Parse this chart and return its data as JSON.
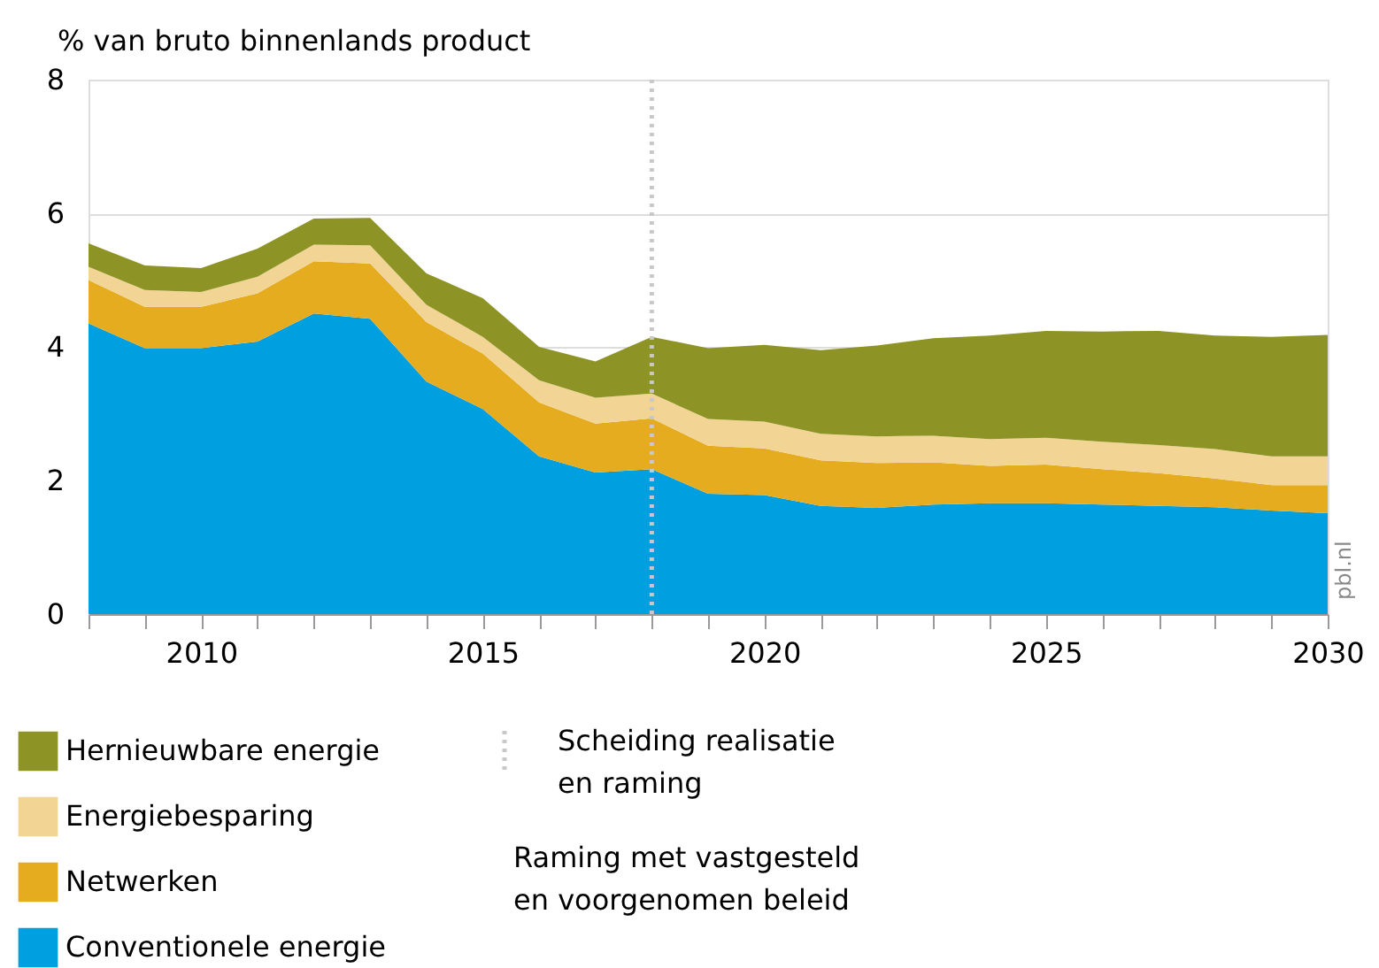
{
  "chart_data": {
    "type": "area",
    "stacked": true,
    "ylabel": "% van bruto binnenlands product",
    "x": [
      2008,
      2009,
      2010,
      2011,
      2012,
      2013,
      2014,
      2015,
      2016,
      2017,
      2018,
      2019,
      2020,
      2021,
      2022,
      2023,
      2024,
      2025,
      2026,
      2027,
      2028,
      2029,
      2030
    ],
    "series": [
      {
        "name": "Conventionele energie",
        "color": "#009fdf",
        "values": [
          4.35,
          3.98,
          3.98,
          4.08,
          4.5,
          4.42,
          3.48,
          3.07,
          2.36,
          2.12,
          2.17,
          1.8,
          1.78,
          1.62,
          1.59,
          1.64,
          1.66,
          1.66,
          1.64,
          1.62,
          1.6,
          1.55,
          1.51
        ]
      },
      {
        "name": "Netwerken",
        "color": "#e6ac1f",
        "values": [
          0.65,
          0.62,
          0.62,
          0.72,
          0.78,
          0.83,
          0.89,
          0.83,
          0.81,
          0.73,
          0.76,
          0.72,
          0.7,
          0.68,
          0.67,
          0.63,
          0.56,
          0.58,
          0.53,
          0.49,
          0.43,
          0.38,
          0.42
        ]
      },
      {
        "name": "Energiebesparing",
        "color": "#f2d595",
        "values": [
          0.2,
          0.25,
          0.22,
          0.25,
          0.25,
          0.27,
          0.26,
          0.25,
          0.33,
          0.39,
          0.37,
          0.4,
          0.4,
          0.4,
          0.4,
          0.4,
          0.4,
          0.4,
          0.41,
          0.42,
          0.44,
          0.43,
          0.43
        ]
      },
      {
        "name": "Hernieuwbare energie",
        "color": "#8d9324",
        "values": [
          0.35,
          0.37,
          0.36,
          0.42,
          0.39,
          0.41,
          0.47,
          0.58,
          0.5,
          0.54,
          0.85,
          1.06,
          1.15,
          1.25,
          1.36,
          1.46,
          1.55,
          1.6,
          1.65,
          1.71,
          1.7,
          1.79,
          1.82
        ]
      }
    ],
    "xlim": [
      2008,
      2030
    ],
    "xticks": [
      {
        "value": 2008,
        "label": null
      },
      {
        "value": 2009,
        "label": null
      },
      2010,
      {
        "value": 2011,
        "label": null
      },
      {
        "value": 2012,
        "label": null
      },
      {
        "value": 2013,
        "label": null
      },
      {
        "value": 2014,
        "label": null
      },
      2015,
      {
        "value": 2016,
        "label": null
      },
      {
        "value": 2017,
        "label": null
      },
      {
        "value": 2018,
        "label": null
      },
      {
        "value": 2019,
        "label": null
      },
      2020,
      {
        "value": 2021,
        "label": null
      },
      {
        "value": 2022,
        "label": null
      },
      {
        "value": 2023,
        "label": null
      },
      {
        "value": 2024,
        "label": null
      },
      2025,
      {
        "value": 2026,
        "label": null
      },
      {
        "value": 2027,
        "label": null
      },
      {
        "value": 2028,
        "label": null
      },
      {
        "value": 2029,
        "label": null
      },
      2030
    ],
    "ylim": [
      0,
      8
    ],
    "yticks": [
      0,
      2,
      4,
      6,
      8
    ],
    "grid": "y",
    "legend": "bottom",
    "ref_lines": [
      {
        "axis": "x",
        "value": 2018,
        "label": "Scheiding realisatie\nen raming",
        "color": "#c8c8c8",
        "line_style": "dotted"
      }
    ],
    "annotations": [
      "Raming met vastgesteld\nen voorgenomen beleid",
      "pbl.nl"
    ]
  }
}
